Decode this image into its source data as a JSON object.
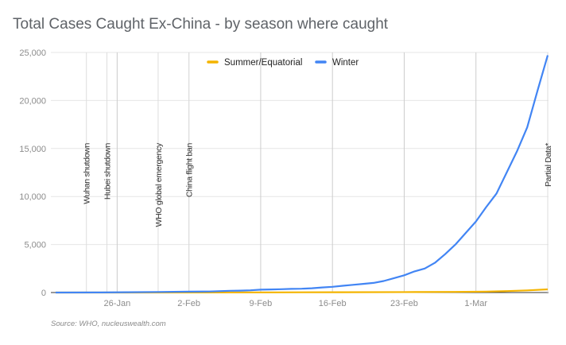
{
  "chart_data": {
    "type": "line",
    "title": "Total Cases Caught Ex-China - by season where caught",
    "source": "Source: WHO, nucleuswealth.com",
    "xlabel": "",
    "ylabel": "",
    "ylim": [
      0,
      25000
    ],
    "y_ticks": [
      0,
      5000,
      10000,
      15000,
      20000,
      25000
    ],
    "y_tick_labels": [
      "0",
      "5,000",
      "10,000",
      "15,000",
      "20,000",
      "25,000"
    ],
    "x_range": [
      "2020-01-20",
      "2020-03-08"
    ],
    "x_ticks": [
      "2020-01-26",
      "2020-02-02",
      "2020-02-09",
      "2020-02-16",
      "2020-02-23",
      "2020-03-01"
    ],
    "x_tick_labels": [
      "26-Jan",
      "2-Feb",
      "9-Feb",
      "16-Feb",
      "23-Feb",
      "1-Mar"
    ],
    "grid": true,
    "legend_position": "top",
    "annotations": [
      {
        "label": "Wuhan shutdown",
        "date": "2020-01-23"
      },
      {
        "label": "Hubei shutdown",
        "date": "2020-01-25"
      },
      {
        "label": "WHO global emergency",
        "date": "2020-01-30"
      },
      {
        "label": "China flight ban",
        "date": "2020-02-02"
      },
      {
        "label": "Partial Data*",
        "date": "2020-03-08"
      }
    ],
    "series": [
      {
        "name": "Summer/Equatorial",
        "color": "#f4b400",
        "points": [
          [
            "2020-01-20",
            0
          ],
          [
            "2020-01-27",
            3
          ],
          [
            "2020-02-03",
            10
          ],
          [
            "2020-02-10",
            20
          ],
          [
            "2020-02-17",
            30
          ],
          [
            "2020-02-24",
            50
          ],
          [
            "2020-02-28",
            70
          ],
          [
            "2020-03-02",
            100
          ],
          [
            "2020-03-04",
            150
          ],
          [
            "2020-03-06",
            220
          ],
          [
            "2020-03-08",
            330
          ]
        ]
      },
      {
        "name": "Winter",
        "color": "#4285f4",
        "points": [
          [
            "2020-01-20",
            0
          ],
          [
            "2020-01-24",
            10
          ],
          [
            "2020-01-27",
            30
          ],
          [
            "2020-01-30",
            60
          ],
          [
            "2020-02-02",
            90
          ],
          [
            "2020-02-04",
            110
          ],
          [
            "2020-02-06",
            180
          ],
          [
            "2020-02-07",
            200
          ],
          [
            "2020-02-08",
            230
          ],
          [
            "2020-02-09",
            300
          ],
          [
            "2020-02-10",
            320
          ],
          [
            "2020-02-11",
            350
          ],
          [
            "2020-02-12",
            380
          ],
          [
            "2020-02-13",
            400
          ],
          [
            "2020-02-14",
            450
          ],
          [
            "2020-02-15",
            530
          ],
          [
            "2020-02-16",
            600
          ],
          [
            "2020-02-17",
            700
          ],
          [
            "2020-02-18",
            800
          ],
          [
            "2020-02-19",
            900
          ],
          [
            "2020-02-20",
            1000
          ],
          [
            "2020-02-21",
            1200
          ],
          [
            "2020-02-22",
            1500
          ],
          [
            "2020-02-23",
            1800
          ],
          [
            "2020-02-24",
            2200
          ],
          [
            "2020-02-25",
            2500
          ],
          [
            "2020-02-26",
            3100
          ],
          [
            "2020-02-27",
            4000
          ],
          [
            "2020-02-28",
            5000
          ],
          [
            "2020-02-29",
            6200
          ],
          [
            "2020-03-01",
            7400
          ],
          [
            "2020-03-02",
            8900
          ],
          [
            "2020-03-03",
            10300
          ],
          [
            "2020-03-04",
            12500
          ],
          [
            "2020-03-05",
            14700
          ],
          [
            "2020-03-06",
            17200
          ],
          [
            "2020-03-07",
            21000
          ],
          [
            "2020-03-08",
            24700
          ]
        ]
      }
    ]
  }
}
